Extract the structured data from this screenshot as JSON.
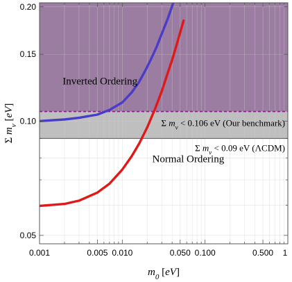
{
  "chart_data": {
    "type": "line",
    "title": "",
    "xlabel": "m_0 [eV]",
    "ylabel": "Σ m_ν [eV]",
    "x_scale": "log",
    "y_scale": "log",
    "xlim": [
      0.001,
      1
    ],
    "ylim": [
      0.0475,
      0.205
    ],
    "grid": true,
    "x_ticks": [
      {
        "value": 0.001,
        "label": "0.001"
      },
      {
        "value": 0.005,
        "label": "0.005"
      },
      {
        "value": 0.01,
        "label": "0.010"
      },
      {
        "value": 0.05,
        "label": "0.050"
      },
      {
        "value": 0.1,
        "label": "0.100"
      },
      {
        "value": 0.5,
        "label": "0.500"
      },
      {
        "value": 1,
        "label": "1"
      }
    ],
    "y_ticks": [
      {
        "value": 0.05,
        "label": "0.05"
      },
      {
        "value": 0.1,
        "label": "0.10"
      },
      {
        "value": 0.15,
        "label": "0.15"
      },
      {
        "value": 0.2,
        "label": "0.20"
      }
    ],
    "series": [
      {
        "name": "Inverted Ordering",
        "color": "#4a3cc8",
        "x": [
          0.001,
          0.002,
          0.003,
          0.005,
          0.007,
          0.01,
          0.013,
          0.016,
          0.019,
          0.022,
          0.026,
          0.03,
          0.035,
          0.04,
          0.045
        ],
        "y": [
          0.1,
          0.101,
          0.102,
          0.104,
          0.107,
          0.112,
          0.119,
          0.127,
          0.136,
          0.145,
          0.157,
          0.17,
          0.185,
          0.201,
          0.217
        ]
      },
      {
        "name": "Normal Ordering",
        "color": "#e01818",
        "x": [
          0.001,
          0.002,
          0.003,
          0.005,
          0.007,
          0.01,
          0.013,
          0.016,
          0.02,
          0.025,
          0.03,
          0.035,
          0.04,
          0.045,
          0.05,
          0.055
        ],
        "y": [
          0.0598,
          0.0605,
          0.0617,
          0.0648,
          0.0684,
          0.0745,
          0.0808,
          0.0873,
          0.0963,
          0.108,
          0.12,
          0.133,
          0.145,
          0.158,
          0.171,
          0.184
        ]
      }
    ],
    "regions": [
      {
        "name": "Inverted Ordering",
        "y_from": 0.106,
        "y_to": 0.205,
        "color": "#9a7da0"
      },
      {
        "name": "benchmark band",
        "y_from": 0.09,
        "y_to": 0.106,
        "color": "#bfbfbf"
      }
    ],
    "thresholds": [
      {
        "value": 0.106,
        "label": "Σ m_ν < 0.106 eV (Our benchmark)",
        "color": "#8a1a8a",
        "style": "dashed"
      },
      {
        "value": 0.09,
        "label": "Σ m_ν < 0.09 eV (ΛCDM)",
        "color": "#707070",
        "style": "solid"
      }
    ],
    "annotations": [
      {
        "text": "Inverted Ordering",
        "x": 0.0019,
        "y": 0.125
      },
      {
        "text": "Normal Ordering",
        "x": 0.023,
        "y": 0.078
      }
    ]
  }
}
